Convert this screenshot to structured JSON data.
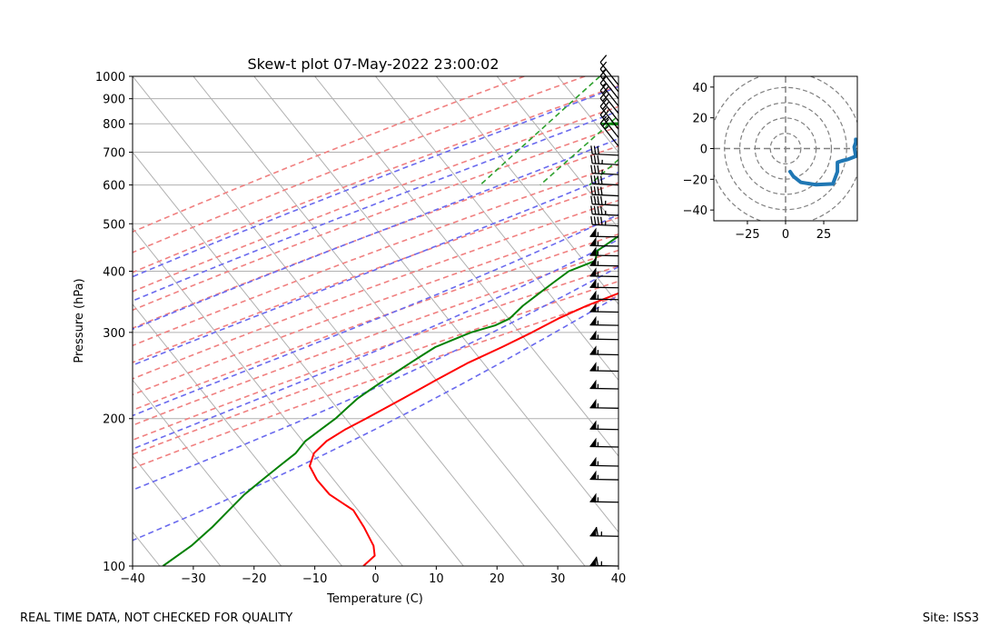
{
  "footer": {
    "disclaimer": "REAL TIME DATA, NOT CHECKED FOR QUALITY",
    "site": "Site: ISS3"
  },
  "chart_data": [
    {
      "type": "line",
      "subtype": "skew-t",
      "title": "Skew-t plot 07-May-2022 23:00:02",
      "xlabel": "Temperature (C)",
      "ylabel": "Pressure (hPa)",
      "xlim": [
        -40,
        40
      ],
      "ylim": [
        1000,
        100
      ],
      "y_scale": "log",
      "x_ticks": [
        "−40",
        "−30",
        "−20",
        "−10",
        "0",
        "10",
        "20",
        "30",
        "40"
      ],
      "y_ticks": [
        "100",
        "200",
        "300",
        "400",
        "500",
        "600",
        "700",
        "800",
        "900",
        "1000"
      ],
      "grid": true,
      "colors": {
        "temperature": "#ff0000",
        "dewpoint": "#008000",
        "dry_adiabats": "#f08080",
        "moist_adiabats": "#6a6aee",
        "mixing_ratio": "#2ca02c",
        "isotherms": "#b0b0b0",
        "barbs": "#000000"
      },
      "series": [
        {
          "name": "temperature",
          "points": [
            [
              1000,
              21
            ],
            [
              985,
              18
            ],
            [
              965,
              16.5
            ],
            [
              950,
              18.5
            ],
            [
              935,
              20
            ],
            [
              915,
              21
            ],
            [
              890,
              22.5
            ],
            [
              860,
              21
            ],
            [
              820,
              19.5
            ],
            [
              790,
              19
            ],
            [
              760,
              19
            ],
            [
              730,
              19.8
            ],
            [
              700,
              20.4
            ],
            [
              680,
              19
            ],
            [
              650,
              18.4
            ],
            [
              620,
              17.5
            ],
            [
              600,
              16.8
            ],
            [
              580,
              17.2
            ],
            [
              560,
              18
            ],
            [
              540,
              17.6
            ],
            [
              520,
              16.6
            ],
            [
              500,
              15.7
            ],
            [
              480,
              15
            ],
            [
              460,
              14.2
            ],
            [
              440,
              13.5
            ],
            [
              420,
              12.5
            ],
            [
              400,
              10
            ],
            [
              380,
              7.5
            ],
            [
              360,
              4
            ],
            [
              340,
              0.5
            ],
            [
              320,
              -2.5
            ],
            [
              300,
              -5
            ],
            [
              280,
              -8
            ],
            [
              260,
              -11.5
            ],
            [
              240,
              -14.5
            ],
            [
              220,
              -17.5
            ],
            [
              200,
              -21
            ],
            [
              190,
              -23
            ],
            [
              180,
              -24.5
            ],
            [
              170,
              -25
            ],
            [
              160,
              -24
            ],
            [
              150,
              -21
            ],
            [
              140,
              -17
            ],
            [
              130,
              -11
            ],
            [
              120,
              -7
            ],
            [
              110,
              -3
            ],
            [
              105,
              -1.5
            ],
            [
              100,
              -2
            ]
          ]
        },
        {
          "name": "dewpoint",
          "points": [
            [
              1000,
              9
            ],
            [
              970,
              9.5
            ],
            [
              940,
              10.5
            ],
            [
              910,
              10
            ],
            [
              885,
              9
            ],
            [
              870,
              -3
            ],
            [
              860,
              -2
            ],
            [
              845,
              -5
            ],
            [
              825,
              -4
            ],
            [
              810,
              -10
            ],
            [
              800,
              -21
            ],
            [
              795,
              -16
            ],
            [
              780,
              -10
            ],
            [
              760,
              3
            ],
            [
              750,
              2
            ],
            [
              740,
              2.5
            ],
            [
              720,
              1
            ],
            [
              700,
              -1.5
            ],
            [
              680,
              -1
            ],
            [
              660,
              1
            ],
            [
              640,
              0
            ],
            [
              620,
              2
            ],
            [
              600,
              5
            ],
            [
              590,
              3
            ],
            [
              580,
              2
            ],
            [
              560,
              -1
            ],
            [
              540,
              0
            ],
            [
              520,
              -3
            ],
            [
              500,
              -2
            ],
            [
              480,
              -3
            ],
            [
              460,
              -4
            ],
            [
              440,
              -5
            ],
            [
              420,
              -4
            ],
            [
              400,
              -7
            ],
            [
              380,
              -8
            ],
            [
              360,
              -9
            ],
            [
              340,
              -10
            ],
            [
              320,
              -10.5
            ],
            [
              310,
              -12
            ],
            [
              300,
              -15
            ],
            [
              290,
              -17
            ],
            [
              280,
              -19
            ],
            [
              270,
              -20
            ],
            [
              260,
              -21
            ],
            [
              250,
              -22
            ],
            [
              240,
              -23
            ],
            [
              230,
              -24
            ],
            [
              220,
              -25
            ],
            [
              210,
              -25.5
            ],
            [
              200,
              -26
            ],
            [
              190,
              -27
            ],
            [
              180,
              -28
            ],
            [
              170,
              -28
            ],
            [
              160,
              -29
            ],
            [
              150,
              -30
            ],
            [
              140,
              -31
            ],
            [
              130,
              -31.5
            ],
            [
              120,
              -32
            ],
            [
              110,
              -33
            ],
            [
              100,
              -35
            ]
          ]
        }
      ],
      "wind_barbs": [
        {
          "p": 100,
          "kt": 65
        },
        {
          "p": 115,
          "kt": 65
        },
        {
          "p": 135,
          "kt": 55
        },
        {
          "p": 150,
          "kt": 55
        },
        {
          "p": 160,
          "kt": 55
        },
        {
          "p": 175,
          "kt": 55
        },
        {
          "p": 190,
          "kt": 55
        },
        {
          "p": 210,
          "kt": 55
        },
        {
          "p": 230,
          "kt": 55
        },
        {
          "p": 250,
          "kt": 55
        },
        {
          "p": 270,
          "kt": 55
        },
        {
          "p": 290,
          "kt": 55
        },
        {
          "p": 310,
          "kt": 55
        },
        {
          "p": 330,
          "kt": 55
        },
        {
          "p": 350,
          "kt": 55
        },
        {
          "p": 370,
          "kt": 55
        },
        {
          "p": 390,
          "kt": 55
        },
        {
          "p": 410,
          "kt": 55
        },
        {
          "p": 430,
          "kt": 55
        },
        {
          "p": 450,
          "kt": 55
        },
        {
          "p": 470,
          "kt": 55
        },
        {
          "p": 495,
          "kt": 45
        },
        {
          "p": 520,
          "kt": 45
        },
        {
          "p": 545,
          "kt": 45
        },
        {
          "p": 570,
          "kt": 40
        },
        {
          "p": 600,
          "kt": 40
        },
        {
          "p": 630,
          "kt": 35
        },
        {
          "p": 660,
          "kt": 35
        },
        {
          "p": 690,
          "kt": 30
        },
        {
          "p": 720,
          "kt": 25
        },
        {
          "p": 750,
          "kt": 25
        },
        {
          "p": 780,
          "kt": 20
        },
        {
          "p": 810,
          "kt": 20
        },
        {
          "p": 840,
          "kt": 20
        },
        {
          "p": 870,
          "kt": 15
        },
        {
          "p": 900,
          "kt": 15
        },
        {
          "p": 930,
          "kt": 15
        },
        {
          "p": 960,
          "kt": 10
        }
      ]
    },
    {
      "type": "line",
      "subtype": "hodograph",
      "xlim": [
        -47,
        47
      ],
      "ylim": [
        -47,
        47
      ],
      "x_ticks": [
        "−25",
        "0",
        "25"
      ],
      "y_ticks": [
        "40",
        "20",
        "0",
        "−20",
        "−40"
      ],
      "rings": [
        10,
        20,
        30,
        40,
        50
      ],
      "color": "#1f77b4",
      "points": [
        [
          3,
          -15
        ],
        [
          5,
          -18
        ],
        [
          10,
          -22
        ],
        [
          20,
          -23.5
        ],
        [
          31,
          -23
        ],
        [
          34,
          -15
        ],
        [
          34,
          -9
        ],
        [
          37,
          -8
        ],
        [
          41,
          -7
        ],
        [
          46,
          -5
        ],
        [
          45,
          1
        ],
        [
          46,
          4
        ],
        [
          46,
          6
        ]
      ]
    }
  ]
}
